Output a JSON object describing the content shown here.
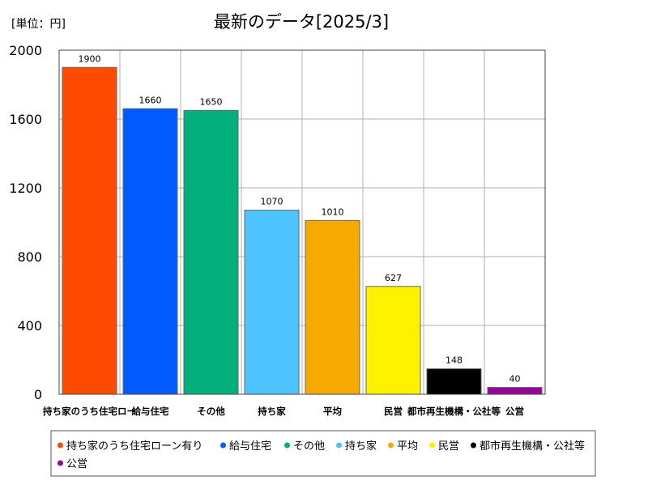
{
  "unit_label": "[単位：円]",
  "colors": {
    "grid": "#b0b0b0",
    "axis": "#444444",
    "bar_stroke": "#666666"
  },
  "chart_data": {
    "type": "bar",
    "title": "最新のデータ[2025/3]",
    "xlabel": "",
    "ylabel": "",
    "ylim": [
      0,
      2000
    ],
    "yticks": [
      0,
      400,
      800,
      1200,
      1600,
      2000
    ],
    "grid": true,
    "legend_position": "bottom",
    "categories": [
      "持ち家のうち住宅ロー",
      "給与住宅",
      "その他",
      "持ち家",
      "平均",
      "民営",
      "都市再生機構・公社等",
      "公営"
    ],
    "legend_labels": [
      "持ち家のうち住宅ローン有り",
      "給与住宅",
      "その他",
      "持ち家",
      "平均",
      "民営",
      "都市再生機構・公社等",
      "公営"
    ],
    "values": [
      1900,
      1660,
      1650,
      1070,
      1010,
      627,
      148,
      40
    ],
    "bar_colors": [
      "#ff4b00",
      "#005aff",
      "#03af7a",
      "#4dc4ff",
      "#f6aa00",
      "#fff100",
      "#000000",
      "#990099"
    ]
  }
}
